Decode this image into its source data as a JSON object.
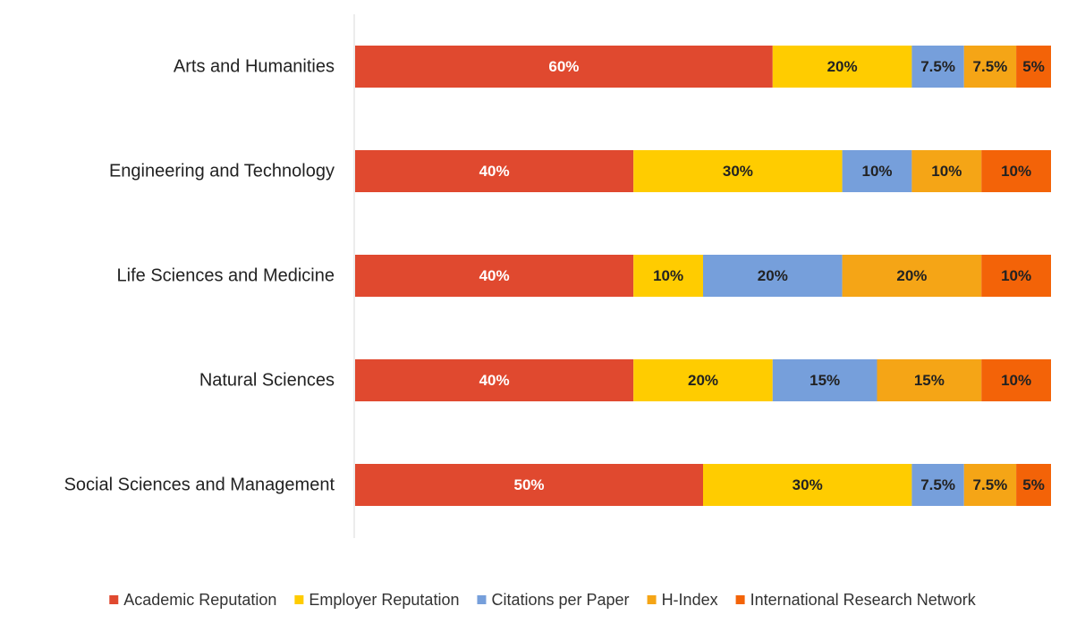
{
  "chart_data": {
    "type": "bar",
    "orientation": "horizontal",
    "stacked": true,
    "title": "",
    "xlabel": "",
    "ylabel": "",
    "xlim": [
      0,
      100
    ],
    "grid": false,
    "legend_position": "bottom",
    "categories": [
      "Arts and Humanities",
      "Engineering and Technology",
      "Life Sciences and Medicine",
      "Natural Sciences",
      "Social Sciences and Management"
    ],
    "series": [
      {
        "name": "Academic Reputation",
        "color": "#e0492f",
        "label_color": "#ffffff",
        "values": [
          60,
          40,
          40,
          40,
          50
        ],
        "labels": [
          "60%",
          "40%",
          "40%",
          "40%",
          "50%"
        ]
      },
      {
        "name": "Employer Reputation",
        "color": "#ffcc00",
        "label_color": "#222222",
        "values": [
          20,
          30,
          10,
          20,
          30
        ],
        "labels": [
          "20%",
          "30%",
          "10%",
          "20%",
          "30%"
        ]
      },
      {
        "name": "Citations per Paper",
        "color": "#769fdb",
        "label_color": "#222222",
        "values": [
          7.5,
          10,
          20,
          15,
          7.5
        ],
        "labels": [
          "7.5%",
          "10%",
          "20%",
          "15%",
          "7.5%"
        ]
      },
      {
        "name": "H-Index",
        "color": "#f5a516",
        "label_color": "#222222",
        "values": [
          7.5,
          10,
          20,
          15,
          7.5
        ],
        "labels": [
          "7.5%",
          "10%",
          "20%",
          "15%",
          "7.5%"
        ]
      },
      {
        "name": "International Research Network",
        "color": "#f36308",
        "label_color": "#222222",
        "values": [
          5,
          10,
          10,
          10,
          5
        ],
        "labels": [
          "5%",
          "10%",
          "10%",
          "10%",
          "5%"
        ]
      }
    ]
  }
}
